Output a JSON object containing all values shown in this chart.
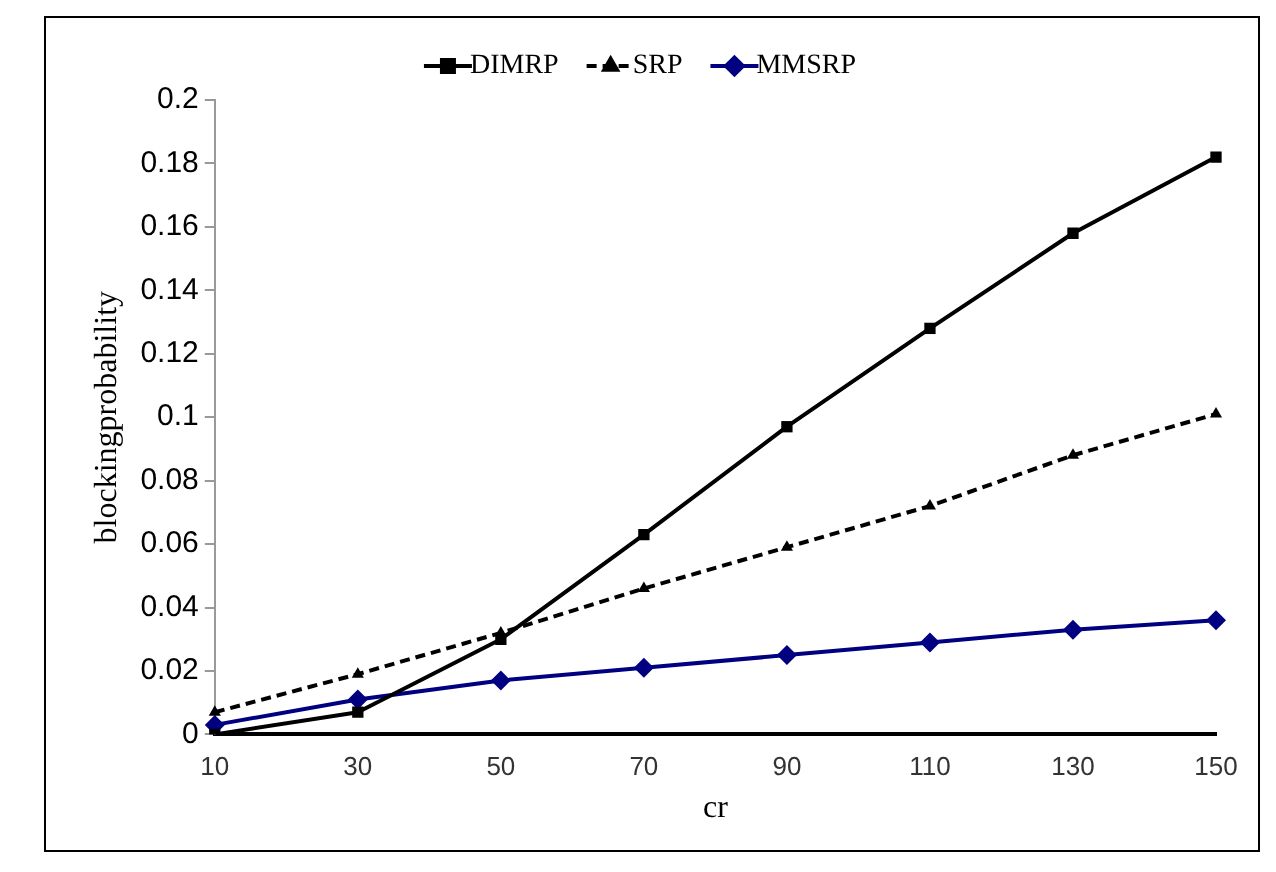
{
  "chart_data": {
    "type": "line",
    "xlabel": "cr",
    "ylabel": "blockingprobability",
    "categories": [
      "10",
      "30",
      "50",
      "70",
      "90",
      "110",
      "130",
      "150"
    ],
    "series": [
      {
        "name": "DIMRP",
        "color": "#000000",
        "marker": "square",
        "line_style": "solid",
        "values": [
          0,
          0.007,
          0.03,
          0.063,
          0.097,
          0.128,
          0.158,
          0.182
        ]
      },
      {
        "name": "SRP",
        "color": "#000000",
        "marker": "triangle",
        "line_style": "dashed",
        "values": [
          0.007,
          0.019,
          0.032,
          0.046,
          0.059,
          0.072,
          0.088,
          0.101
        ]
      },
      {
        "name": "MMSRP",
        "color": "#000080",
        "marker": "diamond",
        "line_style": "solid",
        "values": [
          0.003,
          0.011,
          0.017,
          0.021,
          0.025,
          0.029,
          0.033,
          0.036
        ]
      }
    ],
    "ylim": [
      0,
      0.2
    ],
    "yticks": [
      0,
      0.02,
      0.04,
      0.06,
      0.08,
      0.1,
      0.12,
      0.14,
      0.16,
      0.18,
      0.2
    ],
    "grid": false,
    "legend": "top"
  }
}
